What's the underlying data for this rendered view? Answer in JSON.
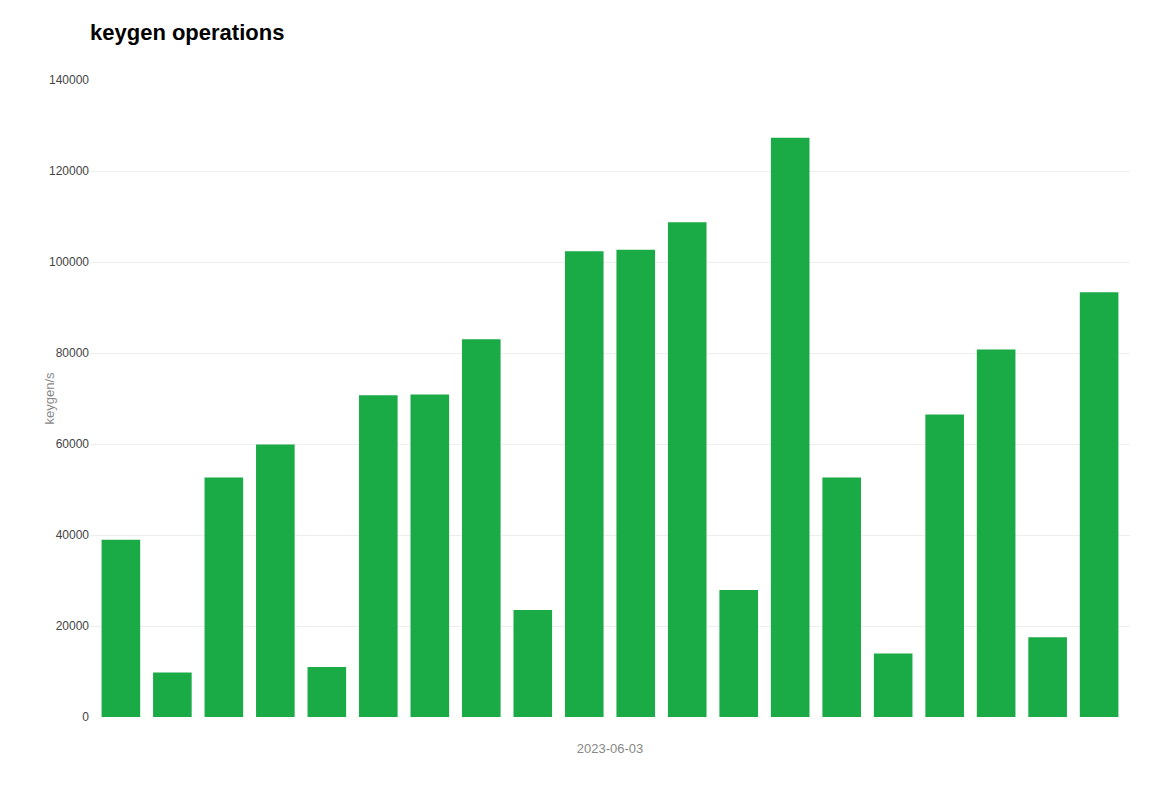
{
  "chart_data": {
    "type": "bar",
    "title": "keygen operations",
    "xlabel": "2023-06-03",
    "ylabel": "keygen/s",
    "categories": [
      null,
      null,
      null,
      null,
      null,
      null,
      null,
      null,
      null,
      null,
      null,
      null,
      null,
      null,
      null,
      null,
      null,
      null,
      null,
      null
    ],
    "values": [
      38940,
      9760,
      52640,
      59870,
      11000,
      70700,
      70900,
      83000,
      23500,
      102370,
      102700,
      108744,
      27914,
      127313,
      52640,
      13975,
      66468,
      80765,
      17541,
      93368
    ],
    "color": "#1aab47",
    "ylim": [
      0,
      140000
    ],
    "yticks": [
      0,
      20000,
      40000,
      60000,
      80000,
      100000,
      120000,
      140000
    ],
    "grid": true,
    "tick_labels": "y"
  }
}
